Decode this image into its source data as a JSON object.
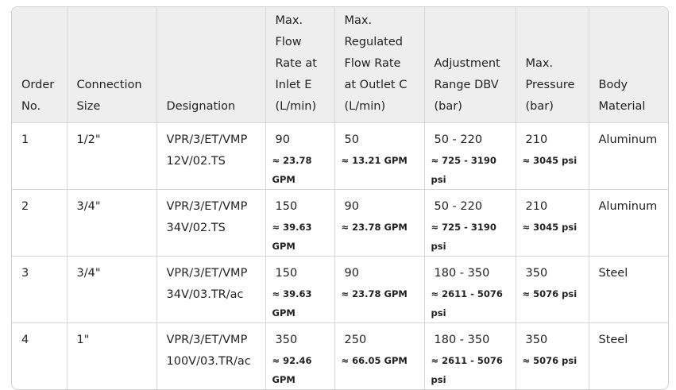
{
  "table": {
    "headers": [
      "Order No.",
      "Connection Size",
      "Designation",
      "Max. Flow Rate at Inlet E (L/min)",
      "Max. Regulated Flow Rate at Outlet C (L/min)",
      "Adjustment Range DBV (bar)",
      "Max. Pressure (bar)",
      "Body Material"
    ],
    "rows": [
      [
        "1",
        "1/2\"",
        "VPR/3/ET/VMP 12V/02.TS",
        {
          "text": "90",
          "note": "≈ 23.78 GPM"
        },
        {
          "text": "50",
          "note": "≈ 13.21 GPM"
        },
        {
          "text": "50 - 220",
          "note": "≈ 725 - 3190 psi"
        },
        {
          "text": "210",
          "note": "≈ 3045 psi"
        },
        "Aluminum"
      ],
      [
        "2",
        "3/4\"",
        "VPR/3/ET/VMP 34V/02.TS",
        {
          "text": "150",
          "note": "≈ 39.63 GPM"
        },
        {
          "text": "90",
          "note": "≈ 23.78 GPM"
        },
        {
          "text": "50 - 220",
          "note": "≈ 725 - 3190 psi"
        },
        {
          "text": "210",
          "note": "≈ 3045 psi"
        },
        "Aluminum"
      ],
      [
        "3",
        "3/4\"",
        "VPR/3/ET/VMP 34V/03.TR/ac",
        {
          "text": "150",
          "note": "≈ 39.63 GPM"
        },
        {
          "text": "90",
          "note": "≈ 23.78 GPM"
        },
        {
          "text": "180 - 350",
          "note": "≈ 2611 - 5076 psi"
        },
        {
          "text": "350",
          "note": "≈ 5076 psi"
        },
        "Steel"
      ],
      [
        "4",
        "1\"",
        "VPR/3/ET/VMP 100V/03.TR/ac",
        {
          "text": "350",
          "note": "≈ 92.46 GPM"
        },
        {
          "text": "250",
          "note": "≈ 66.05 GPM"
        },
        {
          "text": "180 - 350",
          "note": "≈ 2611 - 5076 psi"
        },
        {
          "text": "350",
          "note": "≈ 5076 psi"
        },
        "Steel"
      ]
    ]
  }
}
